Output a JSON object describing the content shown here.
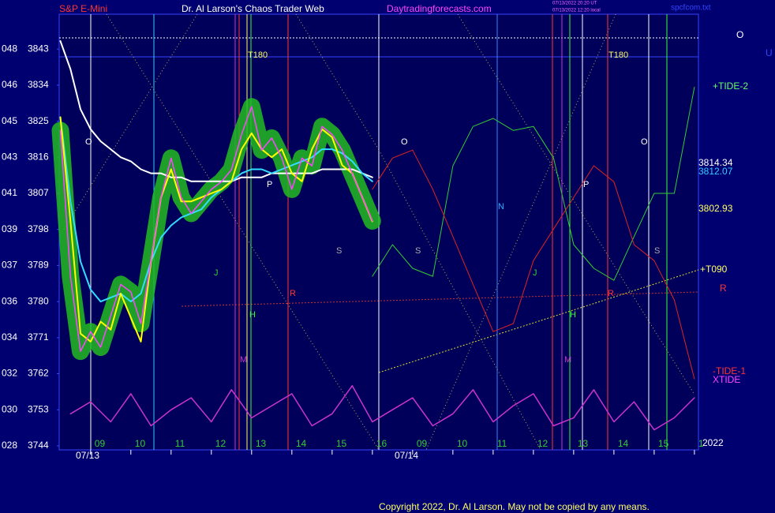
{
  "chart_data": {
    "type": "line",
    "instrument": "S&P E-Mini",
    "title": "Dr. Al Larson's Chaos Trader Web",
    "website": "Daytradingforecasts.com",
    "timestamps": [
      "07/13/2022 20:20 UT",
      "07/13/2022 12:20 local"
    ],
    "file": "spcfcom.txt",
    "copyright": "Copyright 2022, Dr. Al Larson. May not be copied by any means.",
    "xlim": [
      8.22,
      24.1
    ],
    "ylim": [
      3743,
      3851.7
    ],
    "yticks": [
      3744,
      3753,
      3762,
      3771,
      3780,
      3789,
      3798,
      3807,
      3816,
      3825,
      3834,
      3843
    ],
    "y_left_labels": [
      "028",
      "030",
      "032",
      "034",
      "036",
      "037",
      "039",
      "041",
      "043",
      "045",
      "046",
      "048"
    ],
    "xticks": [
      {
        "value": 9,
        "label": "09"
      },
      10,
      11,
      12,
      13,
      14,
      15,
      16,
      {
        "value": 17,
        "label": "09"
      },
      {
        "value": 18,
        "label": "10"
      },
      {
        "value": 19,
        "label": "11"
      },
      {
        "value": 20,
        "label": "12"
      },
      {
        "value": 21,
        "label": "13"
      },
      {
        "value": 22,
        "label": "14"
      },
      {
        "value": 23,
        "label": "15"
      },
      {
        "value": 24,
        "label": "1"
      }
    ],
    "x_dates": [
      "07/13",
      "07/14"
    ],
    "x": [
      8.25,
      8.5,
      8.75,
      9,
      9.25,
      9.5,
      9.75,
      10,
      10.25,
      10.5,
      10.75,
      11,
      11.25,
      11.5,
      11.75,
      12,
      12.25,
      12.5,
      12.75,
      13,
      13.25,
      13.5,
      13.75,
      14,
      14.25,
      14.5,
      14.75,
      15,
      15.25,
      15.5,
      15.75,
      16
    ],
    "series": [
      {
        "color": "#ff44ff",
        "values": [
          3822.7,
          3786.3,
          3767.6,
          3772.5,
          3768.6,
          3776.5,
          3784.3,
          3782.4,
          3774.5,
          3790.2,
          3806,
          3815.8,
          3806,
          3802,
          3805,
          3808,
          3809.9,
          3812.9,
          3821.7,
          3828.6,
          3817.8,
          3820.8,
          3815.8,
          3808,
          3815.8,
          3813.9,
          3823.7,
          3821.7,
          3817.8,
          3811.9,
          3806,
          3800.1
        ]
      },
      {
        "color": "#ffff00",
        "values": [
          3826,
          3800,
          3772,
          3770,
          3775,
          3773,
          3782,
          3776,
          3770,
          3790,
          3806,
          3813,
          3805,
          3805,
          3806,
          3807,
          3808,
          3810,
          3818,
          3822,
          3818,
          3816,
          3818,
          3812,
          3810,
          3818,
          3823,
          3821,
          3814,
          3812,
          3806,
          3800
        ]
      },
      {
        "color": "#33ddff",
        "values": [
          3826,
          3805,
          3790,
          3783,
          3780,
          3781,
          3782,
          3780,
          3782,
          3790,
          3796,
          3799,
          3801,
          3802,
          3803,
          3806,
          3808,
          3810,
          3812,
          3813,
          3813,
          3812,
          3813,
          3814,
          3815,
          3816,
          3818,
          3818,
          3817,
          3815,
          3812,
          3810
        ]
      },
      {
        "color": "#ffffff",
        "values": [
          3845,
          3838,
          3828,
          3823,
          3820,
          3818,
          3816,
          3815,
          3813,
          3812,
          3812,
          3811,
          3811,
          3810,
          3810,
          3810,
          3810,
          3810,
          3811,
          3811,
          3811,
          3812,
          3812,
          3812,
          3812,
          3812,
          3813,
          3813,
          3813,
          3813,
          3812,
          3811
        ]
      }
    ],
    "forecast": {
      "x": [
        16,
        16.5,
        17,
        17.5,
        18,
        18.5,
        19,
        19.5,
        20,
        20.5,
        21,
        21.5,
        22,
        22.5,
        23,
        23.5,
        24
      ],
      "series": [
        {
          "color": "#33cc33",
          "values": [
            3786.3,
            3794.2,
            3788.3,
            3786.3,
            3813.9,
            3823.7,
            3825.7,
            3822.7,
            3823.7,
            3815.8,
            3794.2,
            3788.3,
            3785.3,
            3796.2,
            3807,
            3807,
            3833.5
          ]
        },
        {
          "color": "#dd2222",
          "values": [
            3808,
            3815.8,
            3817.8,
            3808,
            3796.2,
            3784.3,
            3772.5,
            3774.5,
            3790.2,
            3798.1,
            3806,
            3813.9,
            3809.9,
            3794.2,
            3790.2,
            3780.4,
            3760.7
          ]
        }
      ]
    },
    "oscillator": {
      "color": "#cc33cc",
      "x": [
        8.5,
        9,
        9.5,
        10,
        10.5,
        11,
        11.5,
        12,
        12.5,
        13,
        13.5,
        14,
        14.5,
        15,
        15.5,
        16,
        16.5,
        17,
        17.5,
        18,
        18.5,
        19,
        19.5,
        20,
        20.5,
        21,
        21.5,
        22,
        22.5,
        23,
        23.5,
        24
      ],
      "values": [
        3752,
        3755,
        3750,
        3757,
        3749,
        3753,
        3756,
        3750,
        3758,
        3751,
        3754,
        3757,
        3749,
        3752,
        3759,
        3750,
        3753,
        3756,
        3749,
        3752,
        3758,
        3750,
        3754,
        3757,
        3749,
        3751,
        3758,
        3750,
        3755,
        3748,
        3751,
        3756
      ]
    },
    "annotations": [
      "T180",
      "T180",
      "O",
      "O",
      "O",
      "P",
      "P",
      "S",
      "S",
      "S",
      "N",
      "J",
      "J",
      "H",
      "H",
      "M",
      "M",
      "R",
      "R"
    ],
    "right_labels": [
      "O",
      "U",
      "+TIDE-2",
      "3814.34",
      "3812.07",
      "3802.93",
      "+T090",
      "R",
      "-TIDE-1",
      "XTIDE",
      "2022"
    ]
  }
}
